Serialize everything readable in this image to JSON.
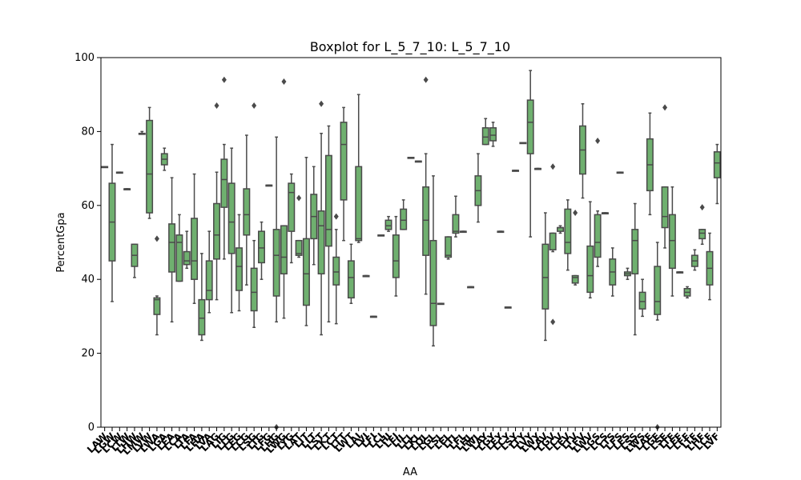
{
  "chart_data": {
    "type": "boxplot",
    "title": "Boxplot for L_5_7_10: L_5_7_10",
    "xlabel": "AA",
    "ylabel": "PercentGpa",
    "ylim": [
      0,
      100
    ],
    "yticks": [
      0,
      20,
      40,
      60,
      80,
      100
    ],
    "box_color": "#6fb06f",
    "line_color": "#4a4a4a",
    "categories": [
      {
        "label": "LAW",
        "stats": [
          70.5,
          70.5,
          70.5,
          70.5,
          70.5
        ],
        "outliers": []
      },
      {
        "label": "LGW",
        "stats": [
          34,
          45,
          55.5,
          66,
          76.5
        ],
        "outliers": []
      },
      {
        "label": "LCW",
        "stats": [
          69,
          69,
          69,
          69,
          69
        ],
        "outliers": []
      },
      {
        "label": "LTW",
        "stats": [
          64.5,
          64.5,
          64.5,
          64.5,
          64.5
        ],
        "outliers": []
      },
      {
        "label": "LHW",
        "stats": [
          40.5,
          43.5,
          46.5,
          49.5,
          49.5
        ],
        "outliers": []
      },
      {
        "label": "LMW",
        "stats": [
          79.5,
          79.5,
          79.5,
          79.5,
          80
        ],
        "outliers": []
      },
      {
        "label": "LVW",
        "stats": [
          56.5,
          58,
          68.5,
          83,
          86.5
        ],
        "outliers": []
      },
      {
        "label": "LWA",
        "stats": [
          25,
          30.5,
          34.5,
          35,
          35.5
        ],
        "outliers": [
          51
        ]
      },
      {
        "label": "LGA",
        "stats": [
          69.5,
          71,
          72.5,
          74,
          75.5
        ],
        "outliers": []
      },
      {
        "label": "LEA",
        "stats": [
          28.5,
          42,
          50,
          55,
          67.5
        ],
        "outliers": []
      },
      {
        "label": "LCA",
        "stats": [
          39.5,
          39.5,
          50,
          52,
          57.5
        ],
        "outliers": []
      },
      {
        "label": "LTA",
        "stats": [
          43,
          44,
          45,
          47.5,
          53
        ],
        "outliers": []
      },
      {
        "label": "LFA",
        "stats": [
          33.5,
          40,
          45,
          56.5,
          68.5
        ],
        "outliers": []
      },
      {
        "label": "LHA",
        "stats": [
          23.5,
          25,
          29.5,
          34.5,
          47
        ],
        "outliers": []
      },
      {
        "label": "LVA",
        "stats": [
          31,
          34.5,
          37,
          45,
          53
        ],
        "outliers": []
      },
      {
        "label": "LAG",
        "stats": [
          34.5,
          45.5,
          52,
          60.5,
          69
        ],
        "outliers": [
          87
        ]
      },
      {
        "label": "LIG",
        "stats": [
          45.5,
          59.5,
          67,
          72.5,
          76.5
        ],
        "outliers": [
          94
        ]
      },
      {
        "label": "LLG",
        "stats": [
          31,
          47,
          55.5,
          66,
          75.5
        ],
        "outliers": []
      },
      {
        "label": "LEG",
        "stats": [
          31.5,
          37,
          43.5,
          48.5,
          57.5
        ],
        "outliers": []
      },
      {
        "label": "LCG",
        "stats": [
          38.5,
          52,
          57.5,
          64.5,
          79
        ],
        "outliers": []
      },
      {
        "label": "LSG",
        "stats": [
          27,
          31.5,
          36.5,
          43,
          50.5
        ],
        "outliers": [
          87
        ]
      },
      {
        "label": "LTG",
        "stats": [
          40,
          44.5,
          48.5,
          53,
          55.5
        ],
        "outliers": []
      },
      {
        "label": "LFG",
        "stats": [
          65.5,
          65.5,
          65.5,
          65.5,
          65.5
        ],
        "outliers": []
      },
      {
        "label": "LHG",
        "stats": [
          28.5,
          35.5,
          46.5,
          53.5,
          78.5
        ],
        "outliers": [
          0
        ]
      },
      {
        "label": "LWG",
        "stats": [
          29.5,
          41.5,
          46,
          54.5,
          54.5
        ],
        "outliers": [
          93.5
        ]
      },
      {
        "label": "LYG",
        "stats": [
          44.5,
          53,
          63.5,
          66,
          68.5
        ],
        "outliers": []
      },
      {
        "label": "LAT",
        "stats": [
          46,
          46.5,
          47,
          50.5,
          50.5
        ],
        "outliers": [
          62
        ]
      },
      {
        "label": "LIT",
        "stats": [
          27.5,
          33,
          41.5,
          51,
          73
        ],
        "outliers": []
      },
      {
        "label": "LLT",
        "stats": [
          44,
          51,
          57,
          63,
          70.5
        ],
        "outliers": []
      },
      {
        "label": "LST",
        "stats": [
          25,
          41.5,
          54.5,
          58.5,
          79.5
        ],
        "outliers": [
          87.5
        ]
      },
      {
        "label": "LKT",
        "stats": [
          28.5,
          49,
          53.5,
          73.5,
          81.5
        ],
        "outliers": []
      },
      {
        "label": "LCT",
        "stats": [
          28,
          38.5,
          42,
          46,
          53.5
        ],
        "outliers": [
          57
        ]
      },
      {
        "label": "LTT",
        "stats": [
          50.5,
          61.5,
          76.5,
          82.5,
          86.5
        ],
        "outliers": []
      },
      {
        "label": "LWT",
        "stats": [
          33.5,
          35,
          40.5,
          45,
          49.5
        ],
        "outliers": []
      },
      {
        "label": "LAI",
        "stats": [
          50,
          50.5,
          51,
          70.5,
          90
        ],
        "outliers": []
      },
      {
        "label": "LVI",
        "stats": [
          41,
          41,
          41,
          41,
          41
        ],
        "outliers": []
      },
      {
        "label": "LFI",
        "stats": [
          30,
          30,
          30,
          30,
          30
        ],
        "outliers": []
      },
      {
        "label": "LCI",
        "stats": [
          52,
          52,
          52,
          52,
          52
        ],
        "outliers": []
      },
      {
        "label": "LHI",
        "stats": [
          53,
          53.5,
          54.5,
          56,
          57
        ],
        "outliers": []
      },
      {
        "label": "LEI",
        "stats": [
          35.5,
          40.5,
          45,
          52,
          57
        ],
        "outliers": []
      },
      {
        "label": "LIL",
        "stats": [
          53.5,
          53.5,
          56,
          59,
          61.5
        ],
        "outliers": []
      },
      {
        "label": "LLL",
        "stats": [
          73,
          73,
          73,
          73,
          73
        ],
        "outliers": []
      },
      {
        "label": "LKL",
        "stats": [
          72,
          72,
          72,
          72,
          72
        ],
        "outliers": []
      },
      {
        "label": "LQL",
        "stats": [
          36,
          46.5,
          56,
          65,
          74
        ],
        "outliers": [
          94
        ]
      },
      {
        "label": "LGL",
        "stats": [
          22,
          27.5,
          33.5,
          50.5,
          68
        ],
        "outliers": []
      },
      {
        "label": "LSL",
        "stats": [
          33.5,
          33.5,
          33.5,
          33.5,
          33.5
        ],
        "outliers": []
      },
      {
        "label": "LEL",
        "stats": [
          45.5,
          46,
          46.5,
          51.5,
          51.5
        ],
        "outliers": []
      },
      {
        "label": "LTL",
        "stats": [
          51.5,
          52.5,
          53,
          57.5,
          62.5
        ],
        "outliers": []
      },
      {
        "label": "LFL",
        "stats": [
          53,
          53,
          53,
          53,
          53
        ],
        "outliers": []
      },
      {
        "label": "LHL",
        "stats": [
          38,
          38,
          38,
          38,
          38
        ],
        "outliers": []
      },
      {
        "label": "LWL",
        "stats": [
          55.5,
          60,
          64,
          68,
          74
        ],
        "outliers": []
      },
      {
        "label": "LAY",
        "stats": [
          76.5,
          76.5,
          78.5,
          81,
          83.5
        ],
        "outliers": []
      },
      {
        "label": "LGY",
        "stats": [
          76,
          77.5,
          79,
          81,
          82.5
        ],
        "outliers": []
      },
      {
        "label": "LEY",
        "stats": [
          53,
          53,
          53,
          53,
          53
        ],
        "outliers": []
      },
      {
        "label": "LCY",
        "stats": [
          32.5,
          32.5,
          32.5,
          32.5,
          32.5
        ],
        "outliers": []
      },
      {
        "label": "LSY",
        "stats": [
          69.5,
          69.5,
          69.5,
          69.5,
          69.5
        ],
        "outliers": []
      },
      {
        "label": "LTY",
        "stats": [
          77,
          77,
          77,
          77,
          77
        ],
        "outliers": []
      },
      {
        "label": "LVY",
        "stats": [
          51.5,
          74,
          82.5,
          88.5,
          96.5
        ],
        "outliers": []
      },
      {
        "label": "LWY",
        "stats": [
          70,
          70,
          70,
          70,
          70
        ],
        "outliers": []
      },
      {
        "label": "LAV",
        "stats": [
          23.5,
          32,
          40.5,
          49.5,
          58
        ],
        "outliers": []
      },
      {
        "label": "LGV",
        "stats": [
          47.5,
          48,
          48,
          52.5,
          52.5
        ],
        "outliers": [
          70.5,
          28.5
        ]
      },
      {
        "label": "LCV",
        "stats": [
          52.5,
          53,
          54,
          54,
          54.5
        ],
        "outliers": []
      },
      {
        "label": "LEV",
        "stats": [
          42.5,
          47,
          50,
          59,
          61.5
        ],
        "outliers": []
      },
      {
        "label": "LTV",
        "stats": [
          38.5,
          39,
          40.5,
          41,
          41
        ],
        "outliers": [
          58
        ]
      },
      {
        "label": "LFV",
        "stats": [
          62,
          68.5,
          75,
          81.5,
          87.5
        ],
        "outliers": []
      },
      {
        "label": "LWV",
        "stats": [
          35,
          36.5,
          41,
          49,
          61
        ],
        "outliers": []
      },
      {
        "label": "LGS",
        "stats": [
          43.5,
          46,
          50,
          57.5,
          58.5
        ],
        "outliers": [
          77.5
        ]
      },
      {
        "label": "LCS",
        "stats": [
          58,
          58,
          58,
          58,
          58
        ],
        "outliers": []
      },
      {
        "label": "LTS",
        "stats": [
          35.5,
          38.5,
          42,
          45.5,
          48.5
        ],
        "outliers": []
      },
      {
        "label": "LFS",
        "stats": [
          69,
          69,
          69,
          69,
          69
        ],
        "outliers": []
      },
      {
        "label": "LES",
        "stats": [
          40,
          41,
          41.5,
          42,
          43
        ],
        "outliers": []
      },
      {
        "label": "LSS",
        "stats": [
          25,
          41.5,
          50.5,
          53.5,
          60.5
        ],
        "outliers": []
      },
      {
        "label": "LWS",
        "stats": [
          30,
          32,
          34,
          36.5,
          40
        ],
        "outliers": []
      },
      {
        "label": "LAE",
        "stats": [
          57.5,
          64,
          71,
          78,
          85
        ],
        "outliers": []
      },
      {
        "label": "LGE",
        "stats": [
          29,
          30.5,
          34,
          43.5,
          50
        ],
        "outliers": [
          0
        ]
      },
      {
        "label": "LSE",
        "stats": [
          48.5,
          54,
          57,
          65,
          65
        ],
        "outliers": [
          86.5
        ]
      },
      {
        "label": "LTE",
        "stats": [
          35.5,
          43,
          50.5,
          57.5,
          65
        ],
        "outliers": []
      },
      {
        "label": "LEF",
        "stats": [
          42,
          42,
          42,
          42,
          42
        ],
        "outliers": []
      },
      {
        "label": "LFF",
        "stats": [
          35,
          35.5,
          36.5,
          37.5,
          38
        ],
        "outliers": []
      },
      {
        "label": "LTF",
        "stats": [
          42.5,
          43.5,
          45,
          46.5,
          48
        ],
        "outliers": []
      },
      {
        "label": "LHF",
        "stats": [
          49.5,
          51,
          52.5,
          53.5,
          53.5
        ],
        "outliers": [
          59.5
        ]
      },
      {
        "label": "LCF",
        "stats": [
          34.5,
          38.5,
          43,
          47.5,
          52.5
        ],
        "outliers": []
      },
      {
        "label": "LVF",
        "stats": [
          60.5,
          67.5,
          71.5,
          74.5,
          76.5
        ],
        "outliers": []
      }
    ]
  }
}
